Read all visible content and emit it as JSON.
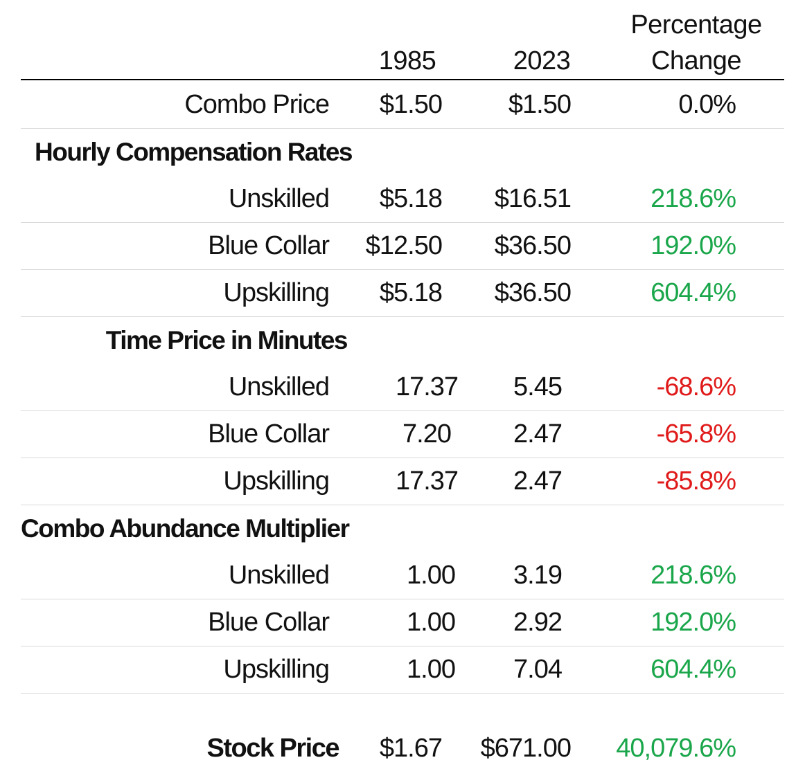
{
  "header": {
    "col_1985": "1985",
    "col_2023": "2023",
    "col_pct_line1": "Percentage",
    "col_pct_line2": "Change"
  },
  "colors": {
    "positive": "#1aa64a",
    "negative": "#e01a1a",
    "rule": "#d9d9d9"
  },
  "combo_price": {
    "label": "Combo Price",
    "v1985": "$1.50",
    "v2023": "$1.50",
    "pct": "0.0%"
  },
  "hourly": {
    "title": "Hourly Compensation Rates",
    "rows": [
      {
        "label": "Unskilled",
        "v1985": "$5.18",
        "v2023": "$16.51",
        "pct": "218.6%"
      },
      {
        "label": "Blue Collar",
        "v1985": "$12.50",
        "v2023": "$36.50",
        "pct": "192.0%"
      },
      {
        "label": "Upskilling",
        "v1985": "$5.18",
        "v2023": "$36.50",
        "pct": "604.4%"
      }
    ]
  },
  "time_price": {
    "title": "Time Price in Minutes",
    "rows": [
      {
        "label": "Unskilled",
        "v1985": "17.37",
        "v2023": "5.45",
        "pct": "-68.6%"
      },
      {
        "label": "Blue Collar",
        "v1985": "7.20",
        "v2023": "2.47",
        "pct": "-65.8%"
      },
      {
        "label": "Upskilling",
        "v1985": "17.37",
        "v2023": "2.47",
        "pct": "-85.8%"
      }
    ]
  },
  "abundance": {
    "title": "Combo Abundance Multiplier",
    "rows": [
      {
        "label": "Unskilled",
        "v1985": "1.00",
        "v2023": "3.19",
        "pct": "218.6%"
      },
      {
        "label": "Blue Collar",
        "v1985": "1.00",
        "v2023": "2.92",
        "pct": "192.0%"
      },
      {
        "label": "Upskilling",
        "v1985": "1.00",
        "v2023": "7.04",
        "pct": "604.4%"
      }
    ]
  },
  "stock_price": {
    "label": "Stock Price",
    "v1985": "$1.67",
    "v2023": "$671.00",
    "pct": "40,079.6%"
  }
}
